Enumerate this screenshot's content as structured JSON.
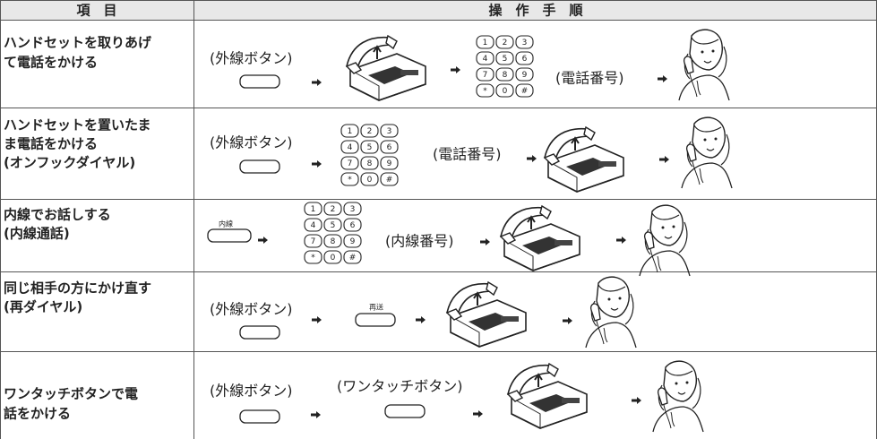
{
  "header": {
    "item": "項　目",
    "procedure": "操　作　手　順"
  },
  "keypad": [
    "1",
    "2",
    "3",
    "4",
    "5",
    "6",
    "7",
    "8",
    "9",
    "*",
    "0",
    "#"
  ],
  "rows": [
    {
      "item": [
        "ハンドセットを取りあげ",
        "て電話をかける"
      ],
      "labels": [
        "(外線ボタン)",
        "(電話番号)"
      ]
    },
    {
      "item": [
        "ハンドセットを置いたま",
        "ま電話をかける",
        "(オンフックダイヤル)"
      ],
      "labels": [
        "(外線ボタン)",
        "(電話番号)"
      ]
    },
    {
      "item": [
        "内線でお話しする",
        "(内線通話)"
      ],
      "labels": [
        "内線",
        "(内線番号)"
      ]
    },
    {
      "item": [
        "同じ相手の方にかけ直す",
        "(再ダイヤル)"
      ],
      "labels": [
        "(外線ボタン)",
        "再送"
      ]
    },
    {
      "item": [
        "ワンタッチボタンで電",
        "話をかける"
      ],
      "labels": [
        "(外線ボタン)",
        "(ワンタッチボタン)"
      ]
    }
  ]
}
